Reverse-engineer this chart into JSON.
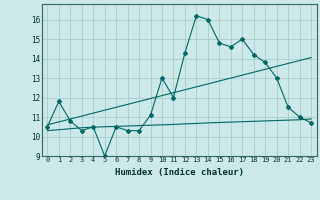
{
  "xlabel": "Humidex (Indice chaleur)",
  "bg_color": "#cce8e8",
  "grid_color": "#aacccc",
  "line_color": "#006666",
  "xlim": [
    -0.5,
    23.5
  ],
  "ylim": [
    9,
    16.8
  ],
  "yticks": [
    9,
    10,
    11,
    12,
    13,
    14,
    15,
    16
  ],
  "xticks": [
    0,
    1,
    2,
    3,
    4,
    5,
    6,
    7,
    8,
    9,
    10,
    11,
    12,
    13,
    14,
    15,
    16,
    17,
    18,
    19,
    20,
    21,
    22,
    23
  ],
  "main_line": [
    10.5,
    11.8,
    10.8,
    10.3,
    10.5,
    9.0,
    10.5,
    10.3,
    10.3,
    11.1,
    13.0,
    12.0,
    14.3,
    16.2,
    16.0,
    14.8,
    14.6,
    15.0,
    14.2,
    13.8,
    13.0,
    11.5,
    11.0,
    10.7
  ],
  "trend_line1": [
    10.6,
    10.75,
    10.9,
    11.05,
    11.2,
    11.35,
    11.5,
    11.65,
    11.8,
    11.95,
    12.1,
    12.25,
    12.4,
    12.55,
    12.7,
    12.85,
    13.0,
    13.15,
    13.3,
    13.45,
    13.6,
    13.75,
    13.9,
    14.05
  ],
  "trend_line2": [
    10.3,
    10.35,
    10.4,
    10.45,
    10.48,
    10.5,
    10.52,
    10.54,
    10.56,
    10.58,
    10.6,
    10.62,
    10.65,
    10.67,
    10.7,
    10.72,
    10.74,
    10.76,
    10.78,
    10.8,
    10.82,
    10.84,
    10.86,
    10.9
  ]
}
